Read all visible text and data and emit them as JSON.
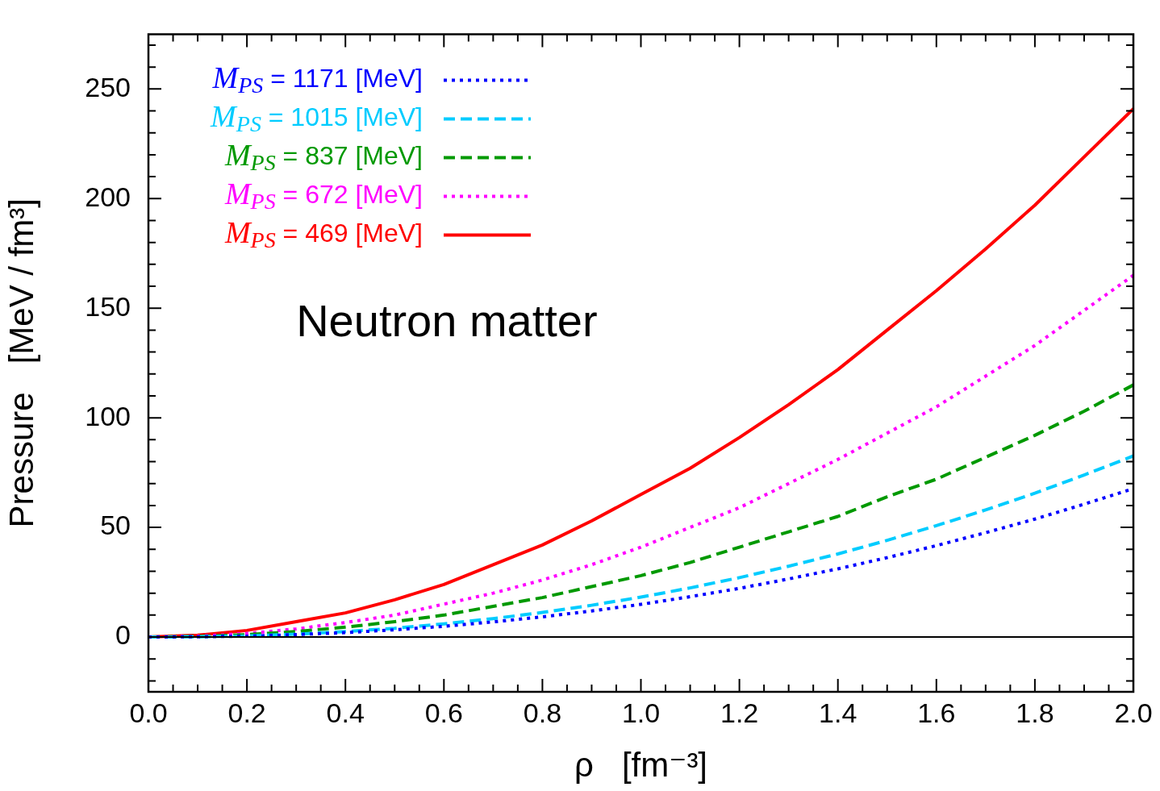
{
  "chart_data": {
    "type": "line",
    "xlabel": "ρ   [fm⁻³]",
    "ylabel": "Pressure   [MeV / fm³]",
    "annotations": [
      "Neutron matter"
    ],
    "x": [
      0,
      0.1,
      0.2,
      0.3,
      0.4,
      0.5,
      0.6,
      0.7,
      0.8,
      0.9,
      1.0,
      1.1,
      1.2,
      1.3,
      1.4,
      1.5,
      1.6,
      1.7,
      1.8,
      1.9,
      2.0
    ],
    "series": [
      {
        "name": "M$_{PS}$ = 1171 [MeV]",
        "color": "#0000ff",
        "line_style": "dotted",
        "values": [
          0,
          0.1,
          0.4,
          1.1,
          2.0,
          3.3,
          4.9,
          6.9,
          9.2,
          11.9,
          14.9,
          18.4,
          22.2,
          26.5,
          31.1,
          36.2,
          41.7,
          47.6,
          53.8,
          60.6,
          67.7
        ]
      },
      {
        "name": "M$_{PS}$ = 1015 [MeV]",
        "color": "#00ccff",
        "line_style": "dashed",
        "values": [
          0,
          0.1,
          0.5,
          1.3,
          2.5,
          4.0,
          6.0,
          8.4,
          11.2,
          14.5,
          18.2,
          22.4,
          27.1,
          32.3,
          37.9,
          44.1,
          50.8,
          58.0,
          65.6,
          73.9,
          82.6
        ]
      },
      {
        "name": "M$_{PS}$ = 837 [MeV]",
        "color": "#009900",
        "line_style": "dashed",
        "values": [
          0,
          0.3,
          1.1,
          2.5,
          4.5,
          7,
          10,
          14,
          18,
          23,
          28,
          34,
          41,
          48,
          55,
          64,
          72,
          82,
          92,
          103,
          115
        ]
      },
      {
        "name": "M$_{PS}$ = 672 [MeV]",
        "color": "#ff00ff",
        "line_style": "dotted",
        "values": [
          0,
          0.4,
          1.6,
          3.7,
          6.6,
          10,
          15,
          20,
          26,
          33,
          41,
          50,
          59,
          70,
          81,
          93,
          105,
          119,
          133,
          149,
          165
        ]
      },
      {
        "name": "M$_{PS}$ = 469 [MeV]",
        "color": "#ff0000",
        "line_style": "solid",
        "values": [
          0,
          0.8,
          3,
          7,
          11,
          17,
          24,
          33,
          42,
          53,
          65,
          77,
          91,
          106,
          122,
          140,
          158,
          177,
          197,
          219,
          241
        ]
      }
    ],
    "xlim": [
      0,
      2
    ],
    "xticks": [
      {
        "value": 0,
        "label": "0.0"
      },
      {
        "value": 0.05,
        "label": null
      },
      {
        "value": 0.1,
        "label": null
      },
      {
        "value": 0.15,
        "label": null
      },
      {
        "value": 0.2,
        "label": "0.2"
      },
      {
        "value": 0.25,
        "label": null
      },
      {
        "value": 0.3,
        "label": null
      },
      {
        "value": 0.35,
        "label": null
      },
      {
        "value": 0.4,
        "label": "0.4"
      },
      {
        "value": 0.45,
        "label": null
      },
      {
        "value": 0.5,
        "label": null
      },
      {
        "value": 0.55,
        "label": null
      },
      {
        "value": 0.6,
        "label": "0.6"
      },
      {
        "value": 0.65,
        "label": null
      },
      {
        "value": 0.7,
        "label": null
      },
      {
        "value": 0.75,
        "label": null
      },
      {
        "value": 0.8,
        "label": "0.8"
      },
      {
        "value": 0.85,
        "label": null
      },
      {
        "value": 0.9,
        "label": null
      },
      {
        "value": 0.95,
        "label": null
      },
      {
        "value": 1.0,
        "label": "1.0"
      },
      {
        "value": 1.05,
        "label": null
      },
      {
        "value": 1.1,
        "label": null
      },
      {
        "value": 1.15,
        "label": null
      },
      {
        "value": 1.2,
        "label": "1.2"
      },
      {
        "value": 1.25,
        "label": null
      },
      {
        "value": 1.3,
        "label": null
      },
      {
        "value": 1.35,
        "label": null
      },
      {
        "value": 1.4,
        "label": "1.4"
      },
      {
        "value": 1.45,
        "label": null
      },
      {
        "value": 1.5,
        "label": null
      },
      {
        "value": 1.55,
        "label": null
      },
      {
        "value": 1.6,
        "label": "1.6"
      },
      {
        "value": 1.65,
        "label": null
      },
      {
        "value": 1.7,
        "label": null
      },
      {
        "value": 1.75,
        "label": null
      },
      {
        "value": 1.8,
        "label": "1.8"
      },
      {
        "value": 1.85,
        "label": null
      },
      {
        "value": 1.9,
        "label": null
      },
      {
        "value": 1.95,
        "label": null
      },
      {
        "value": 2.0,
        "label": "2.0"
      }
    ],
    "ylim": [
      -25,
      275
    ],
    "yticks": [
      {
        "value": -20,
        "label": null
      },
      {
        "value": -10,
        "label": null
      },
      0,
      {
        "value": 10,
        "label": null
      },
      {
        "value": 20,
        "label": null
      },
      {
        "value": 30,
        "label": null
      },
      {
        "value": 40,
        "label": null
      },
      50,
      {
        "value": 60,
        "label": null
      },
      {
        "value": 70,
        "label": null
      },
      {
        "value": 80,
        "label": null
      },
      {
        "value": 90,
        "label": null
      },
      100,
      {
        "value": 110,
        "label": null
      },
      {
        "value": 120,
        "label": null
      },
      {
        "value": 130,
        "label": null
      },
      {
        "value": 140,
        "label": null
      },
      150,
      {
        "value": 160,
        "label": null
      },
      {
        "value": 170,
        "label": null
      },
      {
        "value": 180,
        "label": null
      },
      {
        "value": 190,
        "label": null
      },
      200,
      {
        "value": 210,
        "label": null
      },
      {
        "value": 220,
        "label": null
      },
      {
        "value": 230,
        "label": null
      },
      {
        "value": 240,
        "label": null
      },
      250,
      {
        "value": 260,
        "label": null
      },
      {
        "value": 270,
        "label": null
      }
    ],
    "ref_lines": [
      {
        "axis": "y",
        "value": 0,
        "color": "#000000"
      }
    ],
    "grid": false,
    "legend": "top left",
    "marker": "none"
  }
}
